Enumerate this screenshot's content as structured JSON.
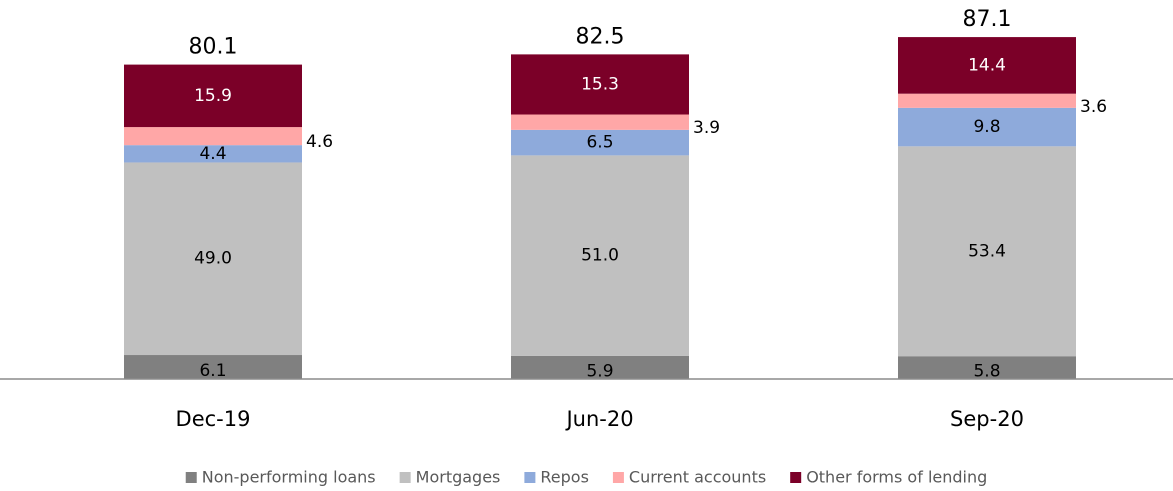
{
  "chart_data": {
    "type": "stacked-bar",
    "categories": [
      "Dec-19",
      "Jun-20",
      "Sep-20"
    ],
    "series": [
      {
        "name": "Non-performing loans",
        "color": "#808080",
        "values": [
          6.1,
          5.9,
          5.8
        ],
        "value_labels": [
          "6.1",
          "5.9",
          "5.8"
        ]
      },
      {
        "name": "Mortgages",
        "color": "#c0c0c0",
        "values": [
          49.0,
          51.0,
          53.4
        ],
        "value_labels": [
          "49.0",
          "51.0",
          "53.4"
        ]
      },
      {
        "name": "Repos",
        "color": "#8eaadb",
        "values": [
          4.4,
          6.5,
          9.8
        ],
        "value_labels": [
          "4.4",
          "6.5",
          "9.8"
        ]
      },
      {
        "name": "Current accounts",
        "color": "#ffa7a7",
        "values": [
          4.6,
          3.9,
          3.6
        ],
        "value_labels": [
          "4.6",
          "3.9",
          "3.6"
        ]
      },
      {
        "name": "Other forms of lending",
        "color": "#7b0028",
        "values": [
          15.9,
          15.3,
          14.4
        ],
        "value_labels": [
          "15.9",
          "15.3",
          "14.4"
        ]
      }
    ],
    "totals": [
      80.1,
      82.5,
      87.1
    ],
    "legend": "bottom"
  }
}
